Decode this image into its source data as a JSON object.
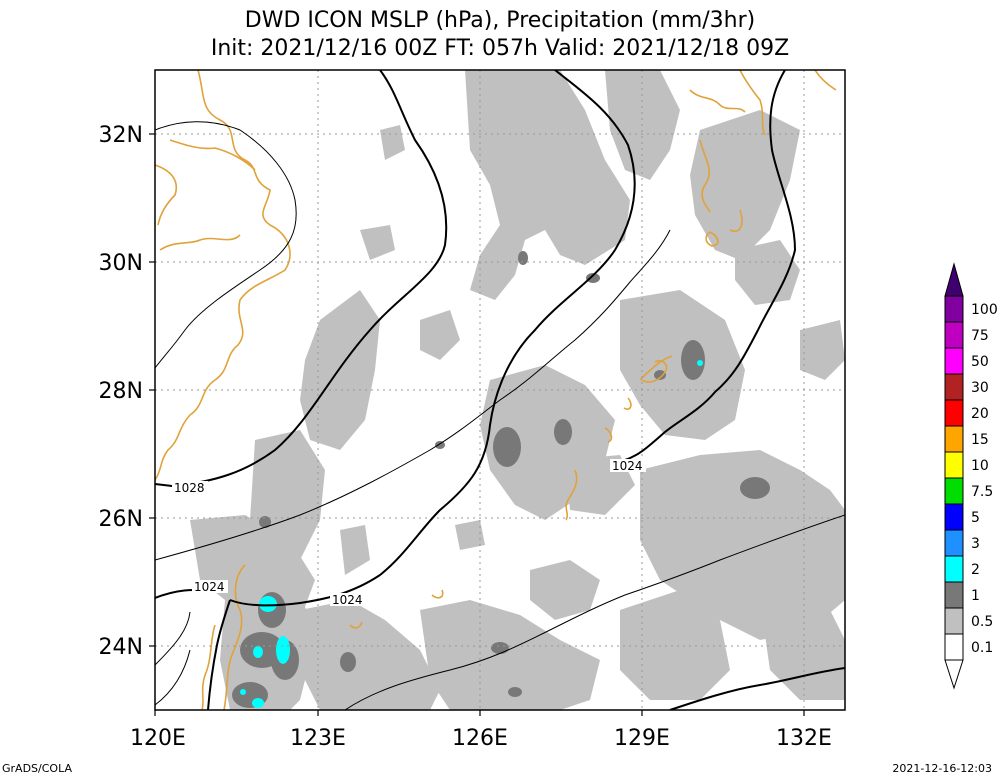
{
  "title": {
    "line1": "DWD ICON MSLP (hPa), Precipitation (mm/3hr)",
    "line2": "Init: 2021/12/16 00Z  FT: 057h  Valid: 2021/12/18 09Z"
  },
  "footer": {
    "credit": "GrADS/COLA",
    "timestamp": "2021-12-16-12:03"
  },
  "map": {
    "x_ticks": [
      "120E",
      "123E",
      "126E",
      "129E",
      "132E"
    ],
    "y_ticks": [
      "24N",
      "26N",
      "28N",
      "30N",
      "32N"
    ],
    "contour_labels": [
      "1028",
      "1024",
      "1024",
      "1024"
    ],
    "colors": {
      "coastline": "#e0a23a",
      "isobar": "#000000",
      "grid": "#999999"
    }
  },
  "colorbar": {
    "labels": [
      "0.1",
      "0.5",
      "1",
      "2",
      "3",
      "5",
      "7.5",
      "10",
      "15",
      "20",
      "30",
      "50",
      "75",
      "100"
    ],
    "colors": [
      "#ffffff",
      "#c0c0c0",
      "#787878",
      "#00ffff",
      "#1e90ff",
      "#0000ff",
      "#00dd00",
      "#ffff00",
      "#ffa500",
      "#ff0000",
      "#b22222",
      "#ff00ff",
      "#c000c0",
      "#8000a0",
      "#400070"
    ]
  }
}
